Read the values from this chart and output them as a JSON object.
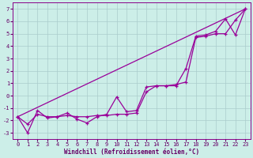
{
  "xlabel": "Windchill (Refroidissement éolien,°C)",
  "bg_color": "#cceee8",
  "grid_color": "#aacccc",
  "line_color": "#990099",
  "xlim": [
    -0.5,
    23.5
  ],
  "ylim": [
    -3.5,
    7.5
  ],
  "yticks": [
    -3,
    -2,
    -1,
    0,
    1,
    2,
    3,
    4,
    5,
    6,
    7
  ],
  "xticks": [
    0,
    1,
    2,
    3,
    4,
    5,
    6,
    7,
    8,
    9,
    10,
    11,
    12,
    13,
    14,
    15,
    16,
    17,
    18,
    19,
    20,
    21,
    22,
    23
  ],
  "line1_x": [
    0,
    1,
    2,
    3,
    4,
    5,
    6,
    7,
    8,
    9,
    10,
    11,
    12,
    13,
    14,
    15,
    16,
    17,
    18,
    19,
    20,
    21,
    22,
    23
  ],
  "line1_y": [
    -1.7,
    -3.0,
    -1.2,
    -1.8,
    -1.7,
    -1.4,
    -1.9,
    -2.2,
    -1.7,
    -1.5,
    -0.1,
    -1.3,
    -1.2,
    0.7,
    0.8,
    0.8,
    0.8,
    2.2,
    4.8,
    4.9,
    5.2,
    6.2,
    4.9,
    7.0
  ],
  "line2_x": [
    0,
    1,
    2,
    3,
    4,
    5,
    6,
    7,
    8,
    9,
    10,
    11,
    12,
    13,
    14,
    15,
    16,
    17,
    18,
    19,
    20,
    21,
    22,
    23
  ],
  "line2_y": [
    -1.7,
    -2.3,
    -1.5,
    -1.7,
    -1.7,
    -1.6,
    -1.7,
    -1.7,
    -1.6,
    -1.6,
    -1.5,
    -1.5,
    -1.4,
    0.3,
    0.8,
    0.8,
    0.9,
    1.1,
    4.7,
    4.8,
    5.0,
    5.0,
    6.1,
    7.0
  ],
  "line3_x": [
    0,
    23
  ],
  "line3_y": [
    -1.7,
    7.0
  ]
}
